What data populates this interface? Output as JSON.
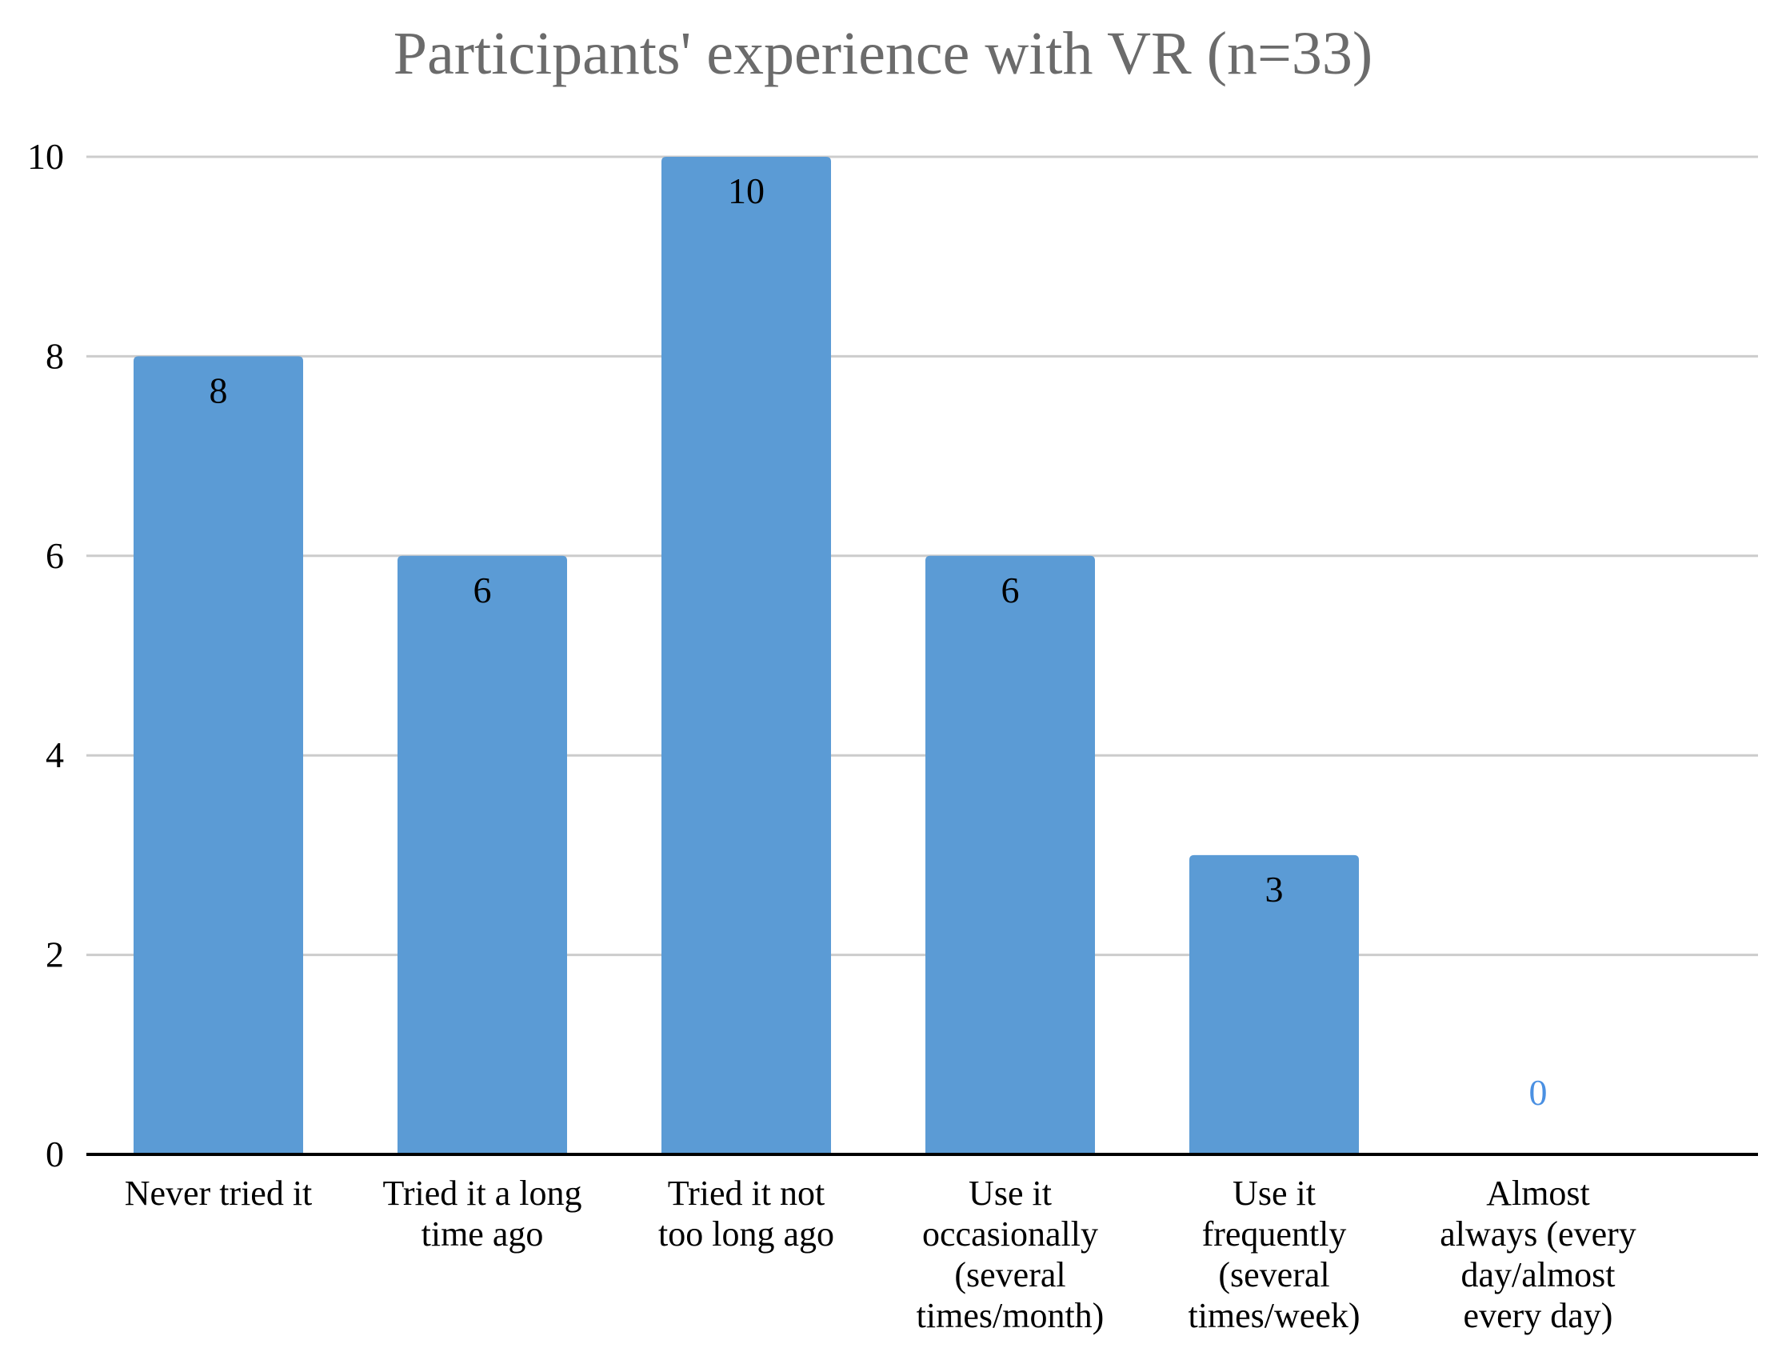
{
  "chart_data": {
    "type": "bar",
    "title": "Participants' experience with VR (n=33)",
    "categories": [
      [
        "Never tried it"
      ],
      [
        "Tried it a long",
        "time ago"
      ],
      [
        "Tried it not",
        "too long ago"
      ],
      [
        "Use it",
        "occasionally",
        "(several",
        "times/month)"
      ],
      [
        "Use it",
        "frequently",
        "(several",
        "times/week)"
      ],
      [
        "Almost",
        "always (every",
        "day/almost",
        "every day)"
      ]
    ],
    "values": [
      8,
      6,
      10,
      6,
      3,
      0
    ],
    "data_labels": [
      "8",
      "6",
      "10",
      "6",
      "3",
      "0"
    ],
    "ylim": [
      0,
      10
    ],
    "yticks": [
      0,
      2,
      4,
      6,
      8,
      10
    ],
    "ytick_labels": [
      "0",
      "2",
      "4",
      "6",
      "8",
      "10"
    ],
    "xlabel": "",
    "ylabel": "",
    "grid": true,
    "legend": "none",
    "colors": {
      "bar": "#5b9bd5",
      "zero_label": "#4a90e2",
      "grid": "#cccccc",
      "axis": "#000000",
      "title": "#6b6b6b",
      "text": "#000000"
    }
  }
}
